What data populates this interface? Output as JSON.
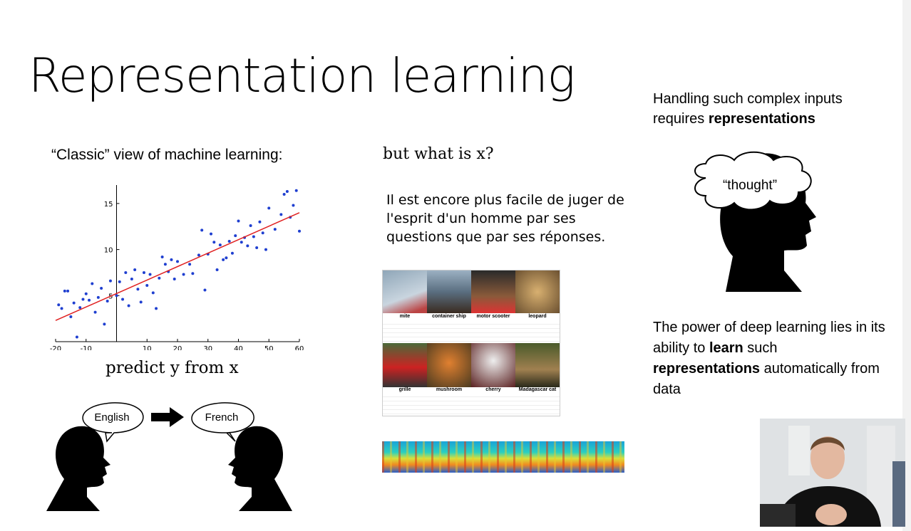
{
  "slide": {
    "title": "Representation learning",
    "classic_view": "“Classic” view of machine learning:",
    "predict_caption": "predict y from x",
    "what_is_x": "but what is x?",
    "quote": "Il est encore plus facile de juger de l'esprit d'un homme par ses questions que par ses réponses.",
    "handling_text_1": "Handling such complex inputs requires ",
    "handling_bold": "representations",
    "thought_label": "“thought”",
    "power_1": "The power of deep learning lies in its ability to ",
    "power_bold_1": "learn",
    "power_2": " such ",
    "power_bold_2": "representations",
    "power_3": " automatically from data",
    "translation": {
      "source": "English",
      "target": "French"
    }
  },
  "image_grid": {
    "labels": [
      "mite",
      "container ship",
      "motor scooter",
      "leopard",
      "grille",
      "mushroom",
      "cherry",
      "Madagascar cat"
    ]
  },
  "chart_data": {
    "type": "scatter",
    "x_ticks": [
      -20,
      -10,
      10,
      20,
      30,
      40,
      50,
      60
    ],
    "y_ticks": [
      5,
      10,
      15
    ],
    "xlim": [
      -20,
      60
    ],
    "ylim": [
      0,
      17
    ],
    "fit_line": {
      "x": [
        -20,
        60
      ],
      "y": [
        2.3,
        14.0
      ]
    },
    "points": [
      [
        -19,
        4.0
      ],
      [
        -18,
        3.6
      ],
      [
        -17,
        5.5
      ],
      [
        -16,
        5.5
      ],
      [
        -15,
        2.7
      ],
      [
        -14,
        4.2
      ],
      [
        -13,
        0.5
      ],
      [
        -12,
        3.7
      ],
      [
        -11,
        4.6
      ],
      [
        -10,
        5.2
      ],
      [
        -9,
        4.5
      ],
      [
        -8,
        6.3
      ],
      [
        -7,
        3.2
      ],
      [
        -6,
        4.8
      ],
      [
        -5,
        5.8
      ],
      [
        -4,
        1.9
      ],
      [
        -3,
        4.4
      ],
      [
        -2,
        6.6
      ],
      [
        0,
        5.0
      ],
      [
        1,
        6.5
      ],
      [
        2,
        4.6
      ],
      [
        3,
        7.5
      ],
      [
        4,
        3.9
      ],
      [
        5,
        6.8
      ],
      [
        6,
        7.8
      ],
      [
        7,
        5.7
      ],
      [
        8,
        4.3
      ],
      [
        9,
        7.5
      ],
      [
        10,
        6.1
      ],
      [
        11,
        7.3
      ],
      [
        12,
        5.3
      ],
      [
        13,
        3.6
      ],
      [
        14,
        6.9
      ],
      [
        15,
        9.2
      ],
      [
        16,
        8.4
      ],
      [
        17,
        7.6
      ],
      [
        18,
        8.9
      ],
      [
        19,
        6.8
      ],
      [
        20,
        8.7
      ],
      [
        22,
        7.3
      ],
      [
        24,
        8.4
      ],
      [
        25,
        7.4
      ],
      [
        27,
        9.4
      ],
      [
        28,
        12.1
      ],
      [
        29,
        5.6
      ],
      [
        30,
        9.5
      ],
      [
        31,
        11.7
      ],
      [
        32,
        10.8
      ],
      [
        33,
        7.8
      ],
      [
        34,
        10.5
      ],
      [
        35,
        8.9
      ],
      [
        36,
        9.1
      ],
      [
        37,
        10.9
      ],
      [
        38,
        9.6
      ],
      [
        39,
        11.5
      ],
      [
        40,
        13.1
      ],
      [
        41,
        10.8
      ],
      [
        42,
        11.3
      ],
      [
        43,
        10.4
      ],
      [
        44,
        12.6
      ],
      [
        45,
        11.4
      ],
      [
        46,
        10.2
      ],
      [
        47,
        13.0
      ],
      [
        48,
        11.8
      ],
      [
        49,
        10.0
      ],
      [
        50,
        14.5
      ],
      [
        52,
        12.2
      ],
      [
        54,
        13.8
      ],
      [
        55,
        16.0
      ],
      [
        56,
        16.3
      ],
      [
        57,
        13.5
      ],
      [
        58,
        14.8
      ],
      [
        59,
        16.4
      ],
      [
        60,
        12.0
      ]
    ]
  }
}
